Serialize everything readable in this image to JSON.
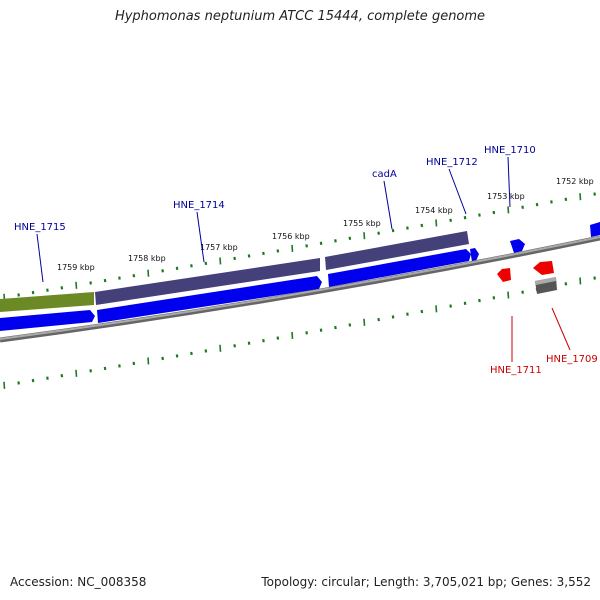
{
  "map": {
    "title": "Hyphomonas neptunium ATCC 15444, complete genome",
    "accession": "Accession: NC_008358",
    "stats": "Topology: circular; Length: 3,705,021 bp; Genes: 3,552"
  },
  "colors": {
    "cds_forward": "#0000ee",
    "cds_reverse": "#ee0000",
    "cog_purple": "#44407a",
    "cog_olive": "#6b8a26",
    "cog_gray": "#555555",
    "backbone": "#888888",
    "ticks": "#1e7a1e",
    "label_forward": "#000099",
    "label_reverse": "#cc0000"
  },
  "scale_labels": [
    "1752 kbp",
    "1753 kbp",
    "1754 kbp",
    "1755 kbp",
    "1756 kbp",
    "1757 kbp",
    "1758 kbp",
    "1759 kbp"
  ],
  "genes": [
    {
      "id": "HNE_1715",
      "strand": "forward",
      "cog": "olive"
    },
    {
      "id": "HNE_1714",
      "strand": "forward",
      "cog": "purple"
    },
    {
      "id": "cadA",
      "strand": "forward",
      "cog": "purple"
    },
    {
      "id": "HNE_1712",
      "strand": "forward",
      "cog": ""
    },
    {
      "id": "HNE_1711",
      "strand": "reverse",
      "cog": ""
    },
    {
      "id": "HNE_1710",
      "strand": "forward",
      "cog": ""
    },
    {
      "id": "HNE_1709",
      "strand": "reverse",
      "cog": "gray"
    }
  ]
}
